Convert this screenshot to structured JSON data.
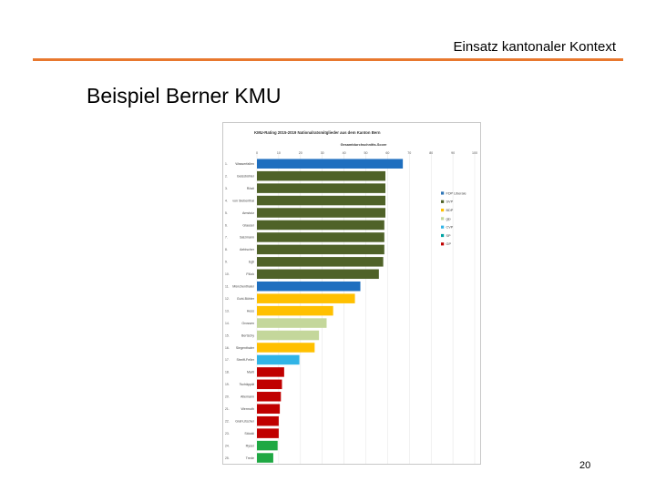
{
  "slide": {
    "header": "Einsatz kantonaler Kontext",
    "title": "Beispiel Berner KMU",
    "page_number": "20"
  },
  "chart_data": {
    "type": "bar",
    "orientation": "horizontal",
    "title": "KMU-Rating 2015-2019 Nationalratsmitglieder aus dem Kanton Bern",
    "xlabel": "Gesamtdurchschnitts-Score",
    "xlim": [
      0,
      100
    ],
    "xticks": [
      0,
      10,
      20,
      30,
      40,
      50,
      60,
      70,
      80,
      90,
      100
    ],
    "grid": true,
    "legend_position": "right",
    "legend": [
      {
        "name": "FDP Liberale",
        "color": "#2E75B6"
      },
      {
        "name": "SVP",
        "color": "#4F6228"
      },
      {
        "name": "BDP",
        "color": "#FFC000"
      },
      {
        "name": "glp",
        "color": "#C4D79B"
      },
      {
        "name": "CVP",
        "color": "#31B4E6"
      },
      {
        "name": "SP",
        "color": "#00A3A3"
      },
      {
        "name": "GP",
        "color": "#C00000"
      }
    ],
    "bars": [
      {
        "label": "Wasserfallen",
        "rank": "1.",
        "value": 67,
        "color": "#1F6FBF"
      },
      {
        "label": "Geissbühler",
        "rank": "2.",
        "value": 59,
        "color": "#4F6228"
      },
      {
        "label": "Rösti",
        "rank": "3.",
        "value": 59,
        "color": "#4F6228"
      },
      {
        "label": "von Siebenthal",
        "rank": "4.",
        "value": 59,
        "color": "#4F6228"
      },
      {
        "label": "Amstutz",
        "rank": "5.",
        "value": 59,
        "color": "#4F6228"
      },
      {
        "label": "Glauser",
        "rank": "6.",
        "value": 58.5,
        "color": "#4F6228"
      },
      {
        "label": "Salzmann",
        "rank": "7.",
        "value": 58.5,
        "color": "#4F6228"
      },
      {
        "label": "Aebischer",
        "rank": "8.",
        "value": 58.5,
        "color": "#4F6228"
      },
      {
        "label": "Egli",
        "rank": "9.",
        "value": 58,
        "color": "#4F6228"
      },
      {
        "label": "Flück",
        "rank": "10.",
        "value": 56,
        "color": "#4F6228"
      },
      {
        "label": "Münchenthaler",
        "rank": "11.",
        "value": 47.5,
        "color": "#1F6FBF"
      },
      {
        "label": "Guhl-Bühler",
        "rank": "12.",
        "value": 45,
        "color": "#FFC000"
      },
      {
        "label": "Hess",
        "rank": "13.",
        "value": 35,
        "color": "#FFC000"
      },
      {
        "label": "Grossen",
        "rank": "14.",
        "value": 32,
        "color": "#C4D79B"
      },
      {
        "label": "Bertschy",
        "rank": "15.",
        "value": 28.5,
        "color": "#C4D79B"
      },
      {
        "label": "Siegenthaler",
        "rank": "16.",
        "value": 26.5,
        "color": "#FFC000"
      },
      {
        "label": "Streiff-Feller",
        "rank": "17.",
        "value": 19.5,
        "color": "#31B4E6"
      },
      {
        "label": "Marti",
        "rank": "18.",
        "value": 12.5,
        "color": "#C00000"
      },
      {
        "label": "Tschäppät",
        "rank": "19.",
        "value": 11.5,
        "color": "#C00000"
      },
      {
        "label": "Allemann",
        "rank": "20.",
        "value": 11,
        "color": "#C00000"
      },
      {
        "label": "Wermuth",
        "rank": "21.",
        "value": 10.5,
        "color": "#C00000"
      },
      {
        "label": "Graf-Litscher",
        "rank": "22.",
        "value": 10,
        "color": "#C00000"
      },
      {
        "label": "Stöckli",
        "rank": "23.",
        "value": 10,
        "color": "#C00000"
      },
      {
        "label": "Ryser",
        "rank": "24.",
        "value": 9.5,
        "color": "#1FA843"
      },
      {
        "label": "Trede",
        "rank": "25.",
        "value": 7.5,
        "color": "#1FA843"
      }
    ]
  }
}
